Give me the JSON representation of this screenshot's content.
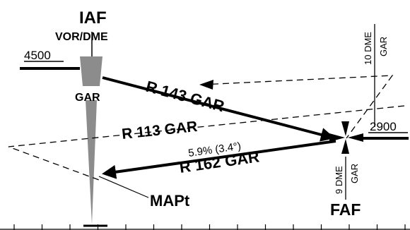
{
  "chart": {
    "iaf_label": "IAF",
    "navaid_label": "VOR/DME",
    "altitude_initial": "4500",
    "navaid_ident": "GAR",
    "radial_143": "R 143 GAR",
    "radial_113": "R 113 GAR",
    "gradient": "5.9% (3.4°)",
    "radial_162": "R 162 GAR",
    "altitude_faf": "2900",
    "dme_10_value": "10 DME",
    "dme_10_ident": "GAR",
    "dme_9_value": "9 DME",
    "dme_9_ident": "GAR",
    "mapt_label": "MAPt",
    "faf_label": "FAF"
  },
  "colors": {
    "ink": "#000000",
    "vor_fill": "#8c8c8c",
    "background": "#ffffff"
  }
}
